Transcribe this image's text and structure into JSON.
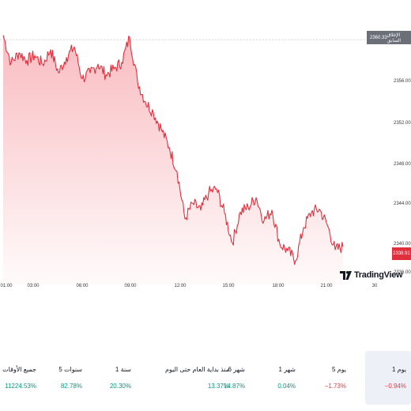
{
  "chart": {
    "price_ticks": [
      "2360.00",
      "2356.00",
      "2352.00",
      "2348.00",
      "2344.00",
      "2340.00",
      "2336.00"
    ],
    "time_ticks": [
      "01:00",
      "03:00",
      "06:00",
      "09:00",
      "12:00",
      "15:00",
      "18:00",
      "21:00",
      "30"
    ],
    "prev_close_label": "الإغلاق السابق",
    "prev_close_value": "2360.33",
    "last_price": "2338.91",
    "brand": "TradingView",
    "line_color": "#e0303d",
    "fill_color": "#f7a6ac"
  },
  "chart_data": {
    "type": "area",
    "x_unit": "time (UTC+1)",
    "x": [
      "00:45",
      "01:15",
      "01:45",
      "02:15",
      "02:45",
      "03:15",
      "03:45",
      "04:15",
      "04:45",
      "05:15",
      "05:45",
      "06:15",
      "06:45",
      "07:15",
      "07:45",
      "08:15",
      "08:45",
      "09:15",
      "09:45",
      "10:15",
      "10:45",
      "11:15",
      "11:45",
      "12:15",
      "12:45",
      "13:15",
      "13:45",
      "14:15",
      "14:45",
      "15:15",
      "15:45",
      "16:15",
      "16:45",
      "17:15",
      "17:45",
      "18:15",
      "18:45",
      "19:15",
      "19:45",
      "20:15",
      "20:45",
      "21:15",
      "21:45",
      "22:15"
    ],
    "values": [
      2360.8,
      2357.9,
      2359.0,
      2358.2,
      2358.7,
      2357.8,
      2359.3,
      2356.9,
      2358.5,
      2359.6,
      2356.3,
      2356.9,
      2357.8,
      2356.7,
      2357.3,
      2358.0,
      2360.6,
      2356.0,
      2353.9,
      2352.8,
      2351.1,
      2349.2,
      2346.7,
      2341.8,
      2343.4,
      2342.7,
      2344.5,
      2344.9,
      2342.4,
      2339.3,
      2342.5,
      2343.0,
      2344.0,
      2341.6,
      2342.7,
      2339.2,
      2338.5,
      2337.5,
      2340.9,
      2342.5,
      2342.8,
      2341.2,
      2338.6,
      2338.91
    ],
    "ylim": [
      2335,
      2361.5
    ],
    "reference_line": 2360.33,
    "grid": false
  },
  "performance": [
    {
      "label": "1 يوم",
      "value": "−0.94%",
      "sign": "neg",
      "active": true
    },
    {
      "label": "5 يوم",
      "value": "−1.73%",
      "sign": "neg",
      "active": false
    },
    {
      "label": "1 شهر",
      "value": "0.04%",
      "sign": "pos",
      "active": false
    },
    {
      "label": "6 شهر",
      "value": "14.87%",
      "sign": "pos",
      "active": false
    },
    {
      "label": "منذ بداية العام حتى اليوم",
      "value": "13.37%",
      "sign": "pos",
      "active": false
    },
    {
      "label": "1 سنة",
      "value": "20.30%",
      "sign": "pos",
      "active": false
    },
    {
      "label": "5 سنوات",
      "value": "82.78%",
      "sign": "pos",
      "active": false
    },
    {
      "label": "جميع الأوقات",
      "value": "11224.53%",
      "sign": "pos",
      "active": false
    }
  ]
}
